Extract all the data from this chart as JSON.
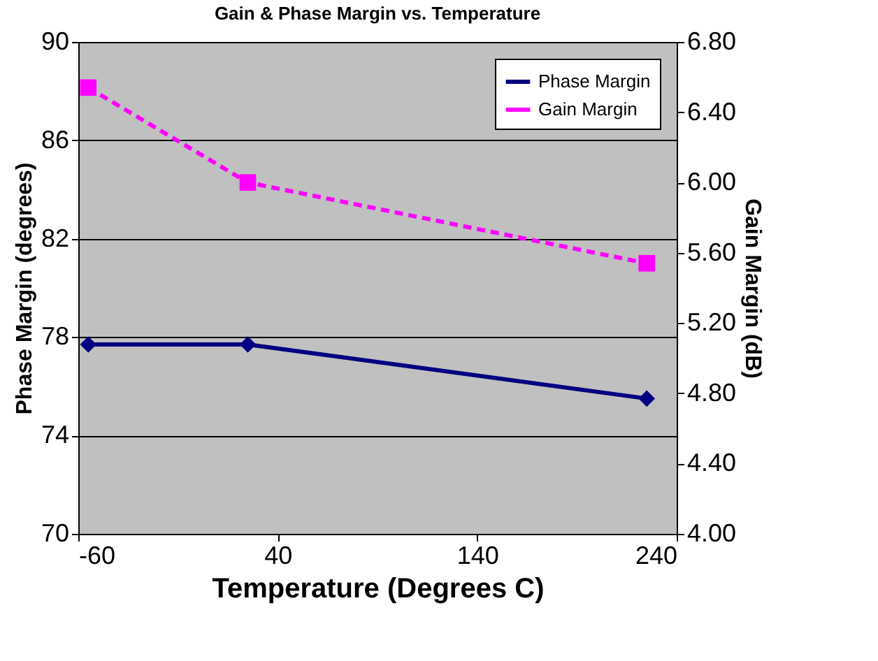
{
  "chart_data": {
    "type": "line",
    "title": "Gain & Phase Margin vs. Temperature",
    "xlabel": "Temperature (Degrees C)",
    "ylabel": "Phase Margin (degrees)",
    "y2label": "Gain Margin (dB)",
    "x": [
      -55,
      25,
      225
    ],
    "series": [
      {
        "name": "Phase Margin",
        "color": "#000080",
        "marker": "diamond",
        "line_style": "solid",
        "values": [
          77.7,
          77.7,
          75.5
        ]
      },
      {
        "name": "Gain Margin",
        "color": "#ff00ff",
        "marker": "square",
        "line_style": "dashed",
        "axis": "y2",
        "values": [
          6.54,
          6.0,
          5.54
        ]
      }
    ],
    "xlim": [
      -60,
      240
    ],
    "xticks": [
      -60,
      40,
      140,
      240
    ],
    "ylim": [
      70,
      90
    ],
    "yticks": [
      70,
      74,
      78,
      82,
      86,
      90
    ],
    "y2lim": [
      4.0,
      6.8
    ],
    "y2ticks": [
      {
        "value": 4.0,
        "label": "4.00"
      },
      {
        "value": 4.4,
        "label": "4.40"
      },
      {
        "value": 4.8,
        "label": "4.80"
      },
      {
        "value": 5.2,
        "label": "5.20"
      },
      {
        "value": 5.6,
        "label": "5.60"
      },
      {
        "value": 6.0,
        "label": "6.00"
      },
      {
        "value": 6.4,
        "label": "6.40"
      },
      {
        "value": 6.8,
        "label": "6.80"
      }
    ],
    "grid": "y",
    "legend": "top right"
  }
}
